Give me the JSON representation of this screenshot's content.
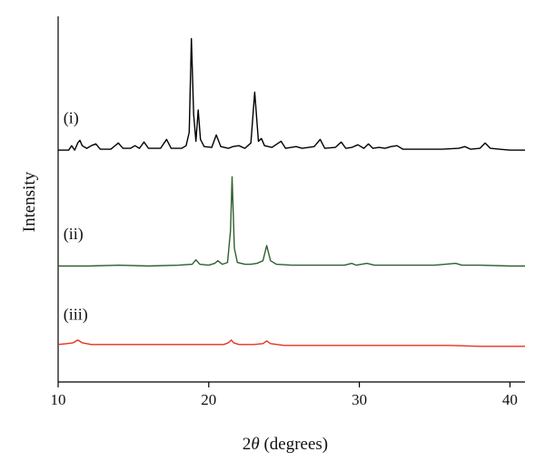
{
  "chart_data": {
    "type": "line",
    "title": "",
    "xlabel_prefix": "2",
    "xlabel_symbol": "θ",
    "xlabel_suffix": " (degrees)",
    "ylabel": "Intensity",
    "xlim": [
      10,
      41
    ],
    "ylim": [
      0,
      4.1
    ],
    "x_ticks": [
      10,
      20,
      30,
      40
    ],
    "y_ticks_shown": false,
    "grid": false,
    "legend": "none",
    "series": [
      {
        "name": "(i)",
        "color": "#000000",
        "baseline": 2.6,
        "points": [
          [
            10.0,
            0.0
          ],
          [
            10.7,
            0.0
          ],
          [
            10.9,
            0.05
          ],
          [
            11.1,
            0.0
          ],
          [
            11.3,
            0.08
          ],
          [
            11.45,
            0.11
          ],
          [
            11.6,
            0.05
          ],
          [
            11.9,
            0.02
          ],
          [
            12.2,
            0.05
          ],
          [
            12.5,
            0.07
          ],
          [
            12.8,
            0.01
          ],
          [
            13.5,
            0.01
          ],
          [
            14.0,
            0.08
          ],
          [
            14.3,
            0.02
          ],
          [
            14.8,
            0.02
          ],
          [
            15.1,
            0.05
          ],
          [
            15.4,
            0.02
          ],
          [
            15.7,
            0.09
          ],
          [
            16.0,
            0.02
          ],
          [
            16.8,
            0.02
          ],
          [
            17.2,
            0.12
          ],
          [
            17.5,
            0.02
          ],
          [
            18.2,
            0.02
          ],
          [
            18.5,
            0.05
          ],
          [
            18.7,
            0.2
          ],
          [
            18.85,
            1.25
          ],
          [
            19.0,
            0.4
          ],
          [
            19.15,
            0.1
          ],
          [
            19.3,
            0.45
          ],
          [
            19.45,
            0.12
          ],
          [
            19.7,
            0.04
          ],
          [
            20.2,
            0.03
          ],
          [
            20.5,
            0.17
          ],
          [
            20.8,
            0.04
          ],
          [
            21.3,
            0.02
          ],
          [
            21.6,
            0.04
          ],
          [
            22.0,
            0.05
          ],
          [
            22.4,
            0.02
          ],
          [
            22.8,
            0.08
          ],
          [
            23.05,
            0.65
          ],
          [
            23.3,
            0.1
          ],
          [
            23.5,
            0.13
          ],
          [
            23.7,
            0.05
          ],
          [
            24.2,
            0.03
          ],
          [
            24.8,
            0.1
          ],
          [
            25.1,
            0.02
          ],
          [
            25.8,
            0.04
          ],
          [
            26.2,
            0.02
          ],
          [
            27.0,
            0.04
          ],
          [
            27.4,
            0.12
          ],
          [
            27.7,
            0.02
          ],
          [
            28.4,
            0.03
          ],
          [
            28.8,
            0.09
          ],
          [
            29.1,
            0.02
          ],
          [
            29.5,
            0.03
          ],
          [
            29.9,
            0.06
          ],
          [
            30.3,
            0.02
          ],
          [
            30.6,
            0.07
          ],
          [
            30.9,
            0.02
          ],
          [
            31.3,
            0.03
          ],
          [
            31.7,
            0.02
          ],
          [
            32.1,
            0.04
          ],
          [
            32.5,
            0.05
          ],
          [
            32.9,
            0.01
          ],
          [
            34.0,
            0.01
          ],
          [
            35.5,
            0.01
          ],
          [
            36.6,
            0.02
          ],
          [
            37.0,
            0.04
          ],
          [
            37.4,
            0.01
          ],
          [
            38.0,
            0.02
          ],
          [
            38.35,
            0.08
          ],
          [
            38.7,
            0.02
          ],
          [
            39.3,
            0.01
          ],
          [
            40.0,
            0.0
          ],
          [
            41.0,
            0.0
          ]
        ]
      },
      {
        "name": "(ii)",
        "color": "#2f5f2f",
        "baseline": 1.3,
        "points": [
          [
            10.0,
            0.0
          ],
          [
            12.0,
            0.0
          ],
          [
            14.0,
            0.01
          ],
          [
            16.0,
            0.0
          ],
          [
            18.0,
            0.01
          ],
          [
            18.9,
            0.02
          ],
          [
            19.15,
            0.07
          ],
          [
            19.4,
            0.02
          ],
          [
            20.0,
            0.01
          ],
          [
            20.4,
            0.03
          ],
          [
            20.6,
            0.06
          ],
          [
            20.9,
            0.02
          ],
          [
            21.25,
            0.04
          ],
          [
            21.45,
            0.4
          ],
          [
            21.55,
            1.0
          ],
          [
            21.7,
            0.2
          ],
          [
            21.9,
            0.04
          ],
          [
            22.4,
            0.02
          ],
          [
            22.8,
            0.02
          ],
          [
            23.2,
            0.03
          ],
          [
            23.6,
            0.06
          ],
          [
            23.85,
            0.23
          ],
          [
            24.1,
            0.06
          ],
          [
            24.5,
            0.02
          ],
          [
            25.5,
            0.01
          ],
          [
            27.0,
            0.01
          ],
          [
            29.0,
            0.01
          ],
          [
            29.5,
            0.03
          ],
          [
            29.8,
            0.01
          ],
          [
            30.5,
            0.03
          ],
          [
            31.0,
            0.01
          ],
          [
            33.0,
            0.01
          ],
          [
            35.0,
            0.01
          ],
          [
            36.4,
            0.03
          ],
          [
            36.8,
            0.01
          ],
          [
            38.0,
            0.01
          ],
          [
            40.0,
            0.0
          ],
          [
            41.0,
            0.0
          ]
        ]
      },
      {
        "name": "(iii)",
        "color": "#e8321e",
        "baseline": 0.4,
        "points": [
          [
            10.0,
            0.02
          ],
          [
            10.6,
            0.03
          ],
          [
            11.0,
            0.04
          ],
          [
            11.3,
            0.07
          ],
          [
            11.6,
            0.04
          ],
          [
            12.2,
            0.02
          ],
          [
            14.0,
            0.02
          ],
          [
            16.0,
            0.02
          ],
          [
            18.0,
            0.02
          ],
          [
            20.0,
            0.02
          ],
          [
            21.0,
            0.02
          ],
          [
            21.3,
            0.04
          ],
          [
            21.5,
            0.07
          ],
          [
            21.65,
            0.04
          ],
          [
            22.0,
            0.02
          ],
          [
            23.0,
            0.02
          ],
          [
            23.6,
            0.03
          ],
          [
            23.85,
            0.06
          ],
          [
            24.1,
            0.03
          ],
          [
            25.0,
            0.01
          ],
          [
            27.0,
            0.01
          ],
          [
            30.0,
            0.01
          ],
          [
            33.0,
            0.01
          ],
          [
            36.0,
            0.01
          ],
          [
            38.0,
            0.0
          ],
          [
            41.0,
            0.0
          ]
        ]
      }
    ]
  }
}
